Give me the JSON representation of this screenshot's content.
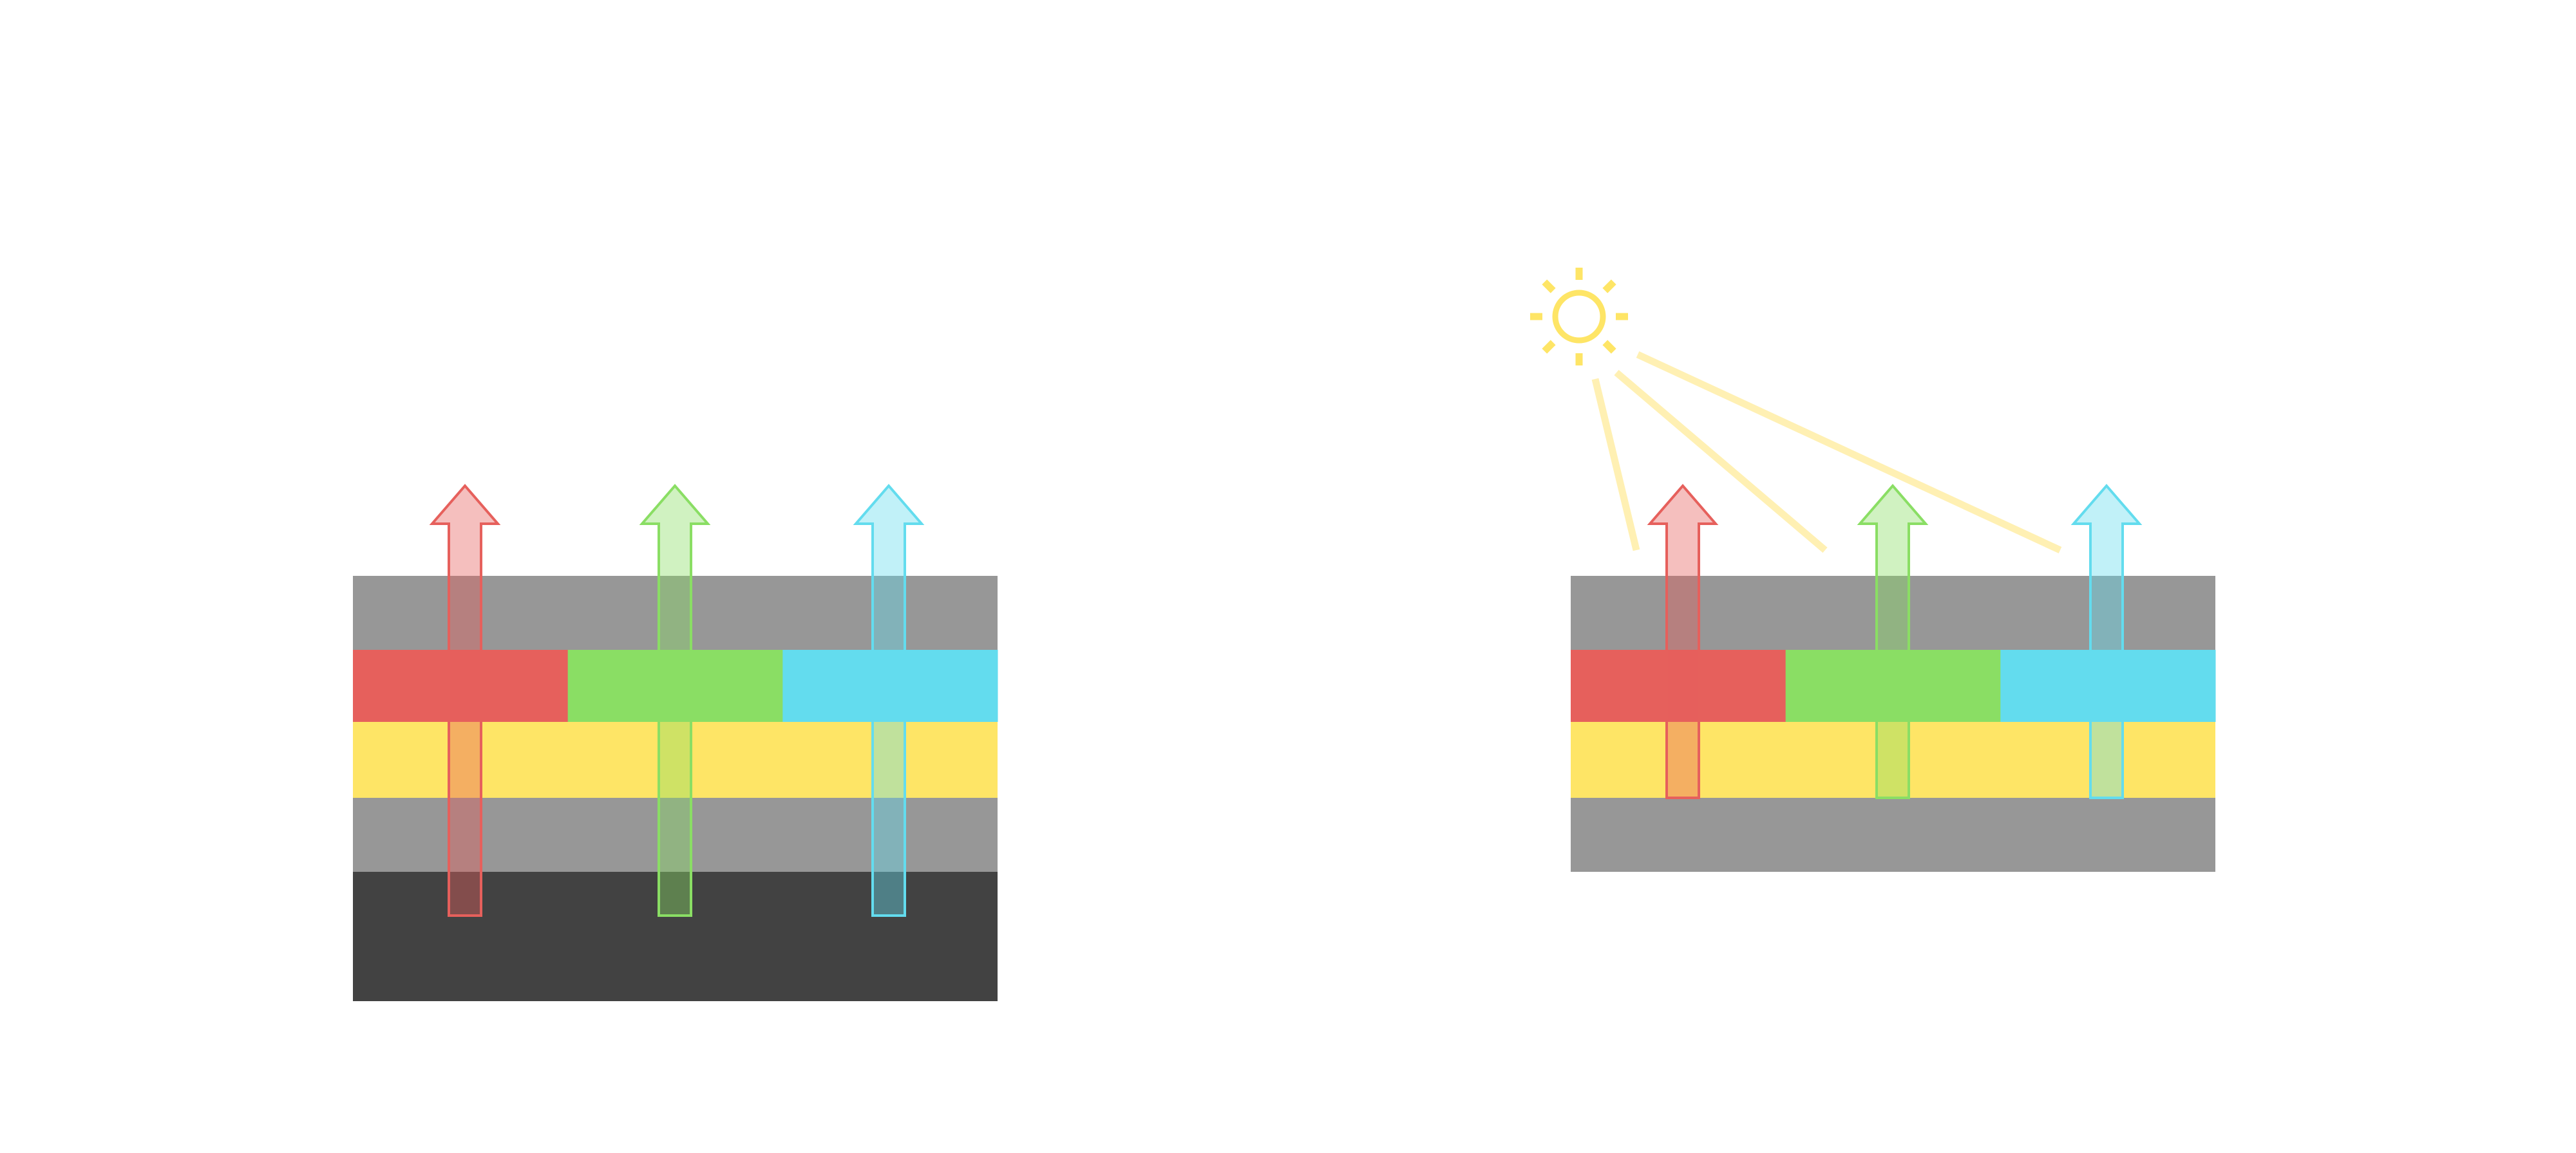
{
  "colors": {
    "background": "#ffffff",
    "layer_gray": "#979797",
    "layer_dark": "#424242",
    "filter_red": "#e6605c",
    "filter_green": "#8ade64",
    "filter_cyan": "#63dcee",
    "layer_yellow": "#fee566",
    "sun": "#fee566",
    "sun_rays": "#fff0b3"
  },
  "icons": {
    "sun": "sun-icon",
    "arrow": "arrow-up-icon"
  },
  "diagrams": [
    {
      "name": "backlit-stack",
      "layers": [
        "gray",
        "color-filters",
        "yellow",
        "gray",
        "dark"
      ],
      "filters": [
        "red",
        "green",
        "cyan"
      ],
      "light_source": "internal"
    },
    {
      "name": "ambient-lit-stack",
      "layers": [
        "gray",
        "color-filters",
        "yellow",
        "gray"
      ],
      "filters": [
        "red",
        "green",
        "cyan"
      ],
      "light_source": "sun"
    }
  ]
}
